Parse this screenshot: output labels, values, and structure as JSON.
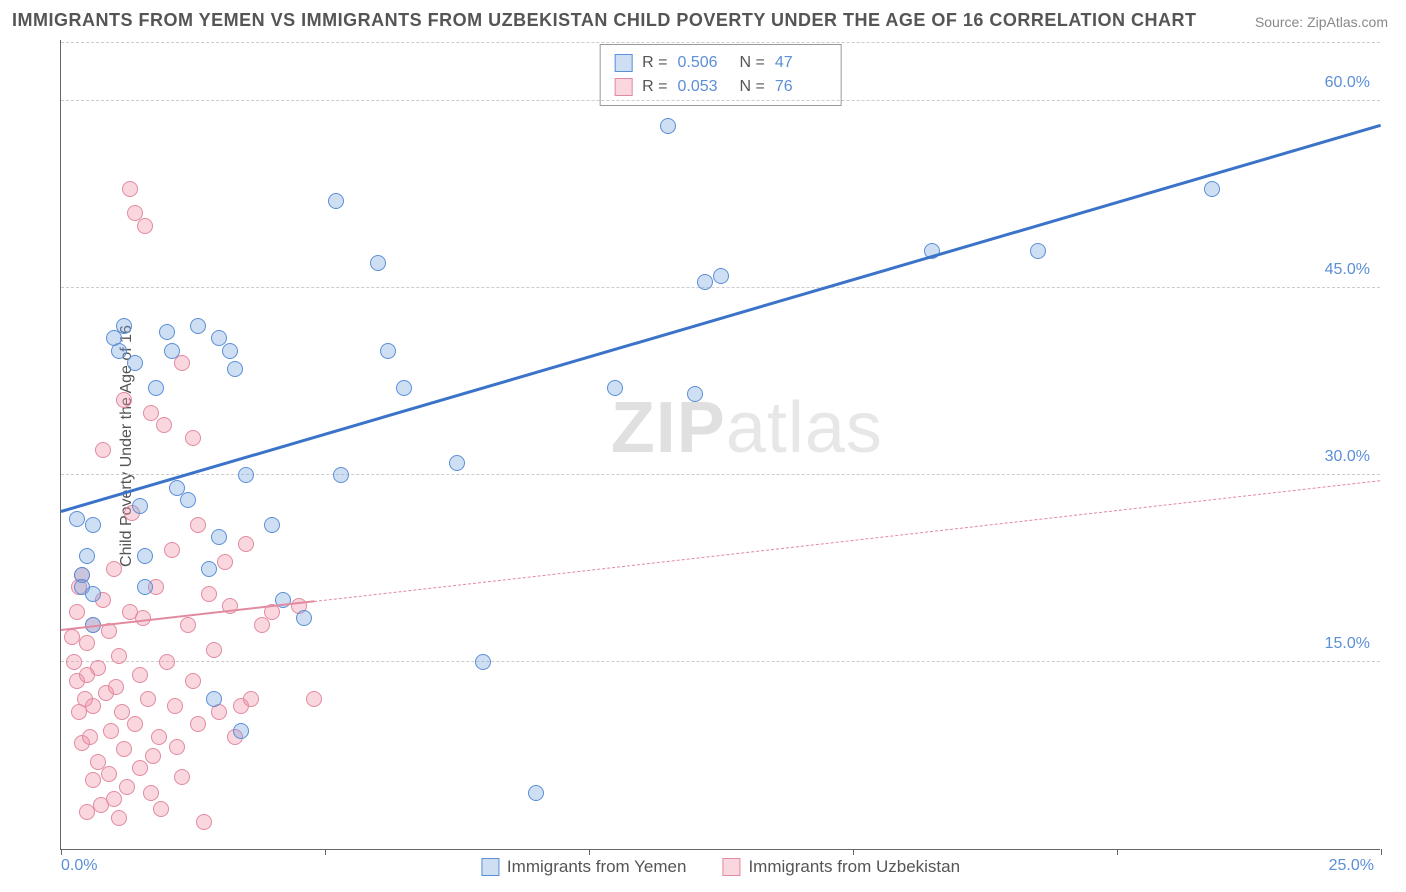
{
  "title": "IMMIGRANTS FROM YEMEN VS IMMIGRANTS FROM UZBEKISTAN CHILD POVERTY UNDER THE AGE OF 16 CORRELATION CHART",
  "source_label": "Source: ",
  "source_name": "ZipAtlas.com",
  "ylabel": "Child Poverty Under the Age of 16",
  "watermark_a": "ZIP",
  "watermark_b": "atlas",
  "chart": {
    "type": "scatter",
    "background_color": "#ffffff",
    "grid_color": "#cccccc",
    "axis_color": "#666666",
    "tick_label_color": "#5b8fd6",
    "xlim": [
      0,
      25
    ],
    "ylim": [
      0,
      65
    ],
    "x_ticks": [
      "0.0%",
      "25.0%"
    ],
    "y_ticks": [
      {
        "v": 15,
        "label": "15.0%"
      },
      {
        "v": 30,
        "label": "30.0%"
      },
      {
        "v": 45,
        "label": "45.0%"
      },
      {
        "v": 60,
        "label": "60.0%"
      }
    ],
    "x_tickmarks_at": [
      0,
      5,
      10,
      15,
      20,
      25
    ],
    "marker_radius": 8,
    "marker_border_width": 1.2,
    "series": [
      {
        "id": "yemen",
        "label": "Immigrants from Yemen",
        "fill": "rgba(115,160,220,0.35)",
        "stroke": "#5b8fd6",
        "R": "0.506",
        "N": "47",
        "trend": {
          "x1": 0,
          "y1": 27,
          "x2": 25,
          "y2": 58,
          "width": 3,
          "color": "#3b73c9",
          "style": "solid",
          "dashed_after_x": null
        },
        "points": [
          [
            0.3,
            26.5
          ],
          [
            0.4,
            22
          ],
          [
            0.4,
            21
          ],
          [
            0.5,
            23.5
          ],
          [
            0.6,
            26
          ],
          [
            0.6,
            18
          ],
          [
            0.6,
            20.5
          ],
          [
            1.0,
            41
          ],
          [
            1.1,
            40
          ],
          [
            1.2,
            42
          ],
          [
            1.4,
            39
          ],
          [
            1.5,
            27.5
          ],
          [
            1.6,
            23.5
          ],
          [
            1.6,
            21
          ],
          [
            1.8,
            37
          ],
          [
            2.0,
            41.5
          ],
          [
            2.1,
            40
          ],
          [
            2.2,
            29
          ],
          [
            2.4,
            28
          ],
          [
            2.6,
            42
          ],
          [
            2.8,
            22.5
          ],
          [
            2.9,
            12
          ],
          [
            3.0,
            41
          ],
          [
            3.0,
            25
          ],
          [
            3.2,
            40
          ],
          [
            3.3,
            38.5
          ],
          [
            3.4,
            9.5
          ],
          [
            3.5,
            30
          ],
          [
            4.0,
            26
          ],
          [
            4.2,
            20
          ],
          [
            4.6,
            18.5
          ],
          [
            5.2,
            52
          ],
          [
            5.3,
            30
          ],
          [
            6.0,
            47
          ],
          [
            6.2,
            40
          ],
          [
            6.5,
            37
          ],
          [
            7.5,
            31
          ],
          [
            8.0,
            15
          ],
          [
            9.0,
            4.5
          ],
          [
            10.5,
            37
          ],
          [
            11.5,
            58
          ],
          [
            12.0,
            36.5
          ],
          [
            12.2,
            45.5
          ],
          [
            12.5,
            46
          ],
          [
            16.5,
            48
          ],
          [
            18.5,
            48
          ],
          [
            21.8,
            53
          ]
        ]
      },
      {
        "id": "uzbekistan",
        "label": "Immigrants from Uzbekistan",
        "fill": "rgba(240,140,160,0.35)",
        "stroke": "#e28aa0",
        "R": "0.053",
        "N": "76",
        "trend": {
          "x1": 0,
          "y1": 17.5,
          "x2": 25,
          "y2": 29.5,
          "width": 2,
          "color": "#e28aa0",
          "style": "solid",
          "dashed_after_x": 4.8
        },
        "points": [
          [
            0.2,
            17
          ],
          [
            0.25,
            15
          ],
          [
            0.3,
            19
          ],
          [
            0.3,
            13.5
          ],
          [
            0.35,
            21
          ],
          [
            0.35,
            11
          ],
          [
            0.4,
            22
          ],
          [
            0.4,
            8.5
          ],
          [
            0.45,
            12
          ],
          [
            0.5,
            14
          ],
          [
            0.5,
            16.5
          ],
          [
            0.5,
            3
          ],
          [
            0.55,
            9
          ],
          [
            0.6,
            18
          ],
          [
            0.6,
            5.5
          ],
          [
            0.6,
            11.5
          ],
          [
            0.7,
            14.5
          ],
          [
            0.7,
            7
          ],
          [
            0.75,
            3.5
          ],
          [
            0.8,
            20
          ],
          [
            0.8,
            32
          ],
          [
            0.85,
            12.5
          ],
          [
            0.9,
            17.5
          ],
          [
            0.9,
            6
          ],
          [
            0.95,
            9.5
          ],
          [
            1.0,
            4
          ],
          [
            1.0,
            22.5
          ],
          [
            1.05,
            13
          ],
          [
            1.1,
            15.5
          ],
          [
            1.1,
            2.5
          ],
          [
            1.15,
            11
          ],
          [
            1.2,
            8
          ],
          [
            1.2,
            36
          ],
          [
            1.25,
            5
          ],
          [
            1.3,
            19
          ],
          [
            1.3,
            53
          ],
          [
            1.35,
            27
          ],
          [
            1.4,
            10
          ],
          [
            1.4,
            51
          ],
          [
            1.5,
            14
          ],
          [
            1.5,
            6.5
          ],
          [
            1.55,
            18.5
          ],
          [
            1.6,
            50
          ],
          [
            1.65,
            12
          ],
          [
            1.7,
            4.5
          ],
          [
            1.7,
            35
          ],
          [
            1.75,
            7.5
          ],
          [
            1.8,
            21
          ],
          [
            1.85,
            9
          ],
          [
            1.9,
            3.2
          ],
          [
            1.95,
            34
          ],
          [
            2.0,
            15
          ],
          [
            2.1,
            24
          ],
          [
            2.15,
            11.5
          ],
          [
            2.2,
            8.2
          ],
          [
            2.3,
            39
          ],
          [
            2.3,
            5.8
          ],
          [
            2.4,
            18
          ],
          [
            2.5,
            13.5
          ],
          [
            2.5,
            33
          ],
          [
            2.6,
            26
          ],
          [
            2.6,
            10
          ],
          [
            2.7,
            2.2
          ],
          [
            2.8,
            20.5
          ],
          [
            2.9,
            16
          ],
          [
            3.0,
            11
          ],
          [
            3.1,
            23
          ],
          [
            3.2,
            19.5
          ],
          [
            3.3,
            9
          ],
          [
            3.4,
            11.5
          ],
          [
            3.5,
            24.5
          ],
          [
            3.6,
            12
          ],
          [
            3.8,
            18
          ],
          [
            4.0,
            19
          ],
          [
            4.5,
            19.5
          ],
          [
            4.8,
            12
          ]
        ]
      }
    ],
    "stats_legend": {
      "R_label": "R =",
      "N_label": "N ="
    }
  }
}
